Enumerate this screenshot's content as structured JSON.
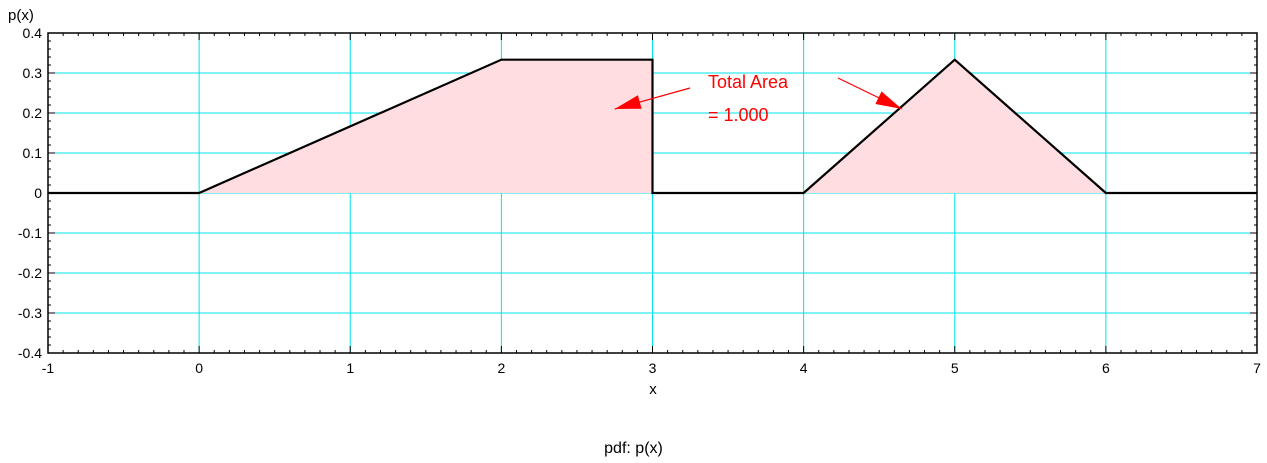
{
  "chart_data": {
    "type": "area",
    "caption": "pdf:  p(x)",
    "xlabel": "x",
    "ylabel": "p(x)",
    "xlim": [
      -1,
      7
    ],
    "ylim": [
      -0.4,
      0.4
    ],
    "x_ticks": [
      -1,
      0,
      1,
      2,
      3,
      4,
      5,
      6,
      7
    ],
    "y_ticks": [
      -0.4,
      -0.3,
      -0.2,
      -0.1,
      0,
      0.1,
      0.2,
      0.3,
      0.4
    ],
    "y_tick_labels": [
      "-0.4",
      "-0.3",
      "-0.2",
      "-0.1",
      "0",
      "0.1",
      "0.2",
      "0.3",
      "0.4"
    ],
    "grid": true,
    "grid_color": "#00e5ee",
    "fill_color": "#ffdde0",
    "line_color": "#000000",
    "series": [
      {
        "x": [
          -1,
          0,
          2,
          3,
          3,
          4,
          5,
          6,
          7
        ],
        "y": [
          0,
          0,
          0.3333,
          0.3333,
          0,
          0,
          0.3333,
          0,
          0
        ]
      }
    ],
    "annotation": {
      "lines": [
        "Total Area",
        "= 1.000"
      ],
      "color": "#ff0000",
      "arrow_targets": [
        {
          "x": 2.75,
          "y": 0.21
        },
        {
          "x": 4.65,
          "y": 0.21
        }
      ]
    }
  }
}
